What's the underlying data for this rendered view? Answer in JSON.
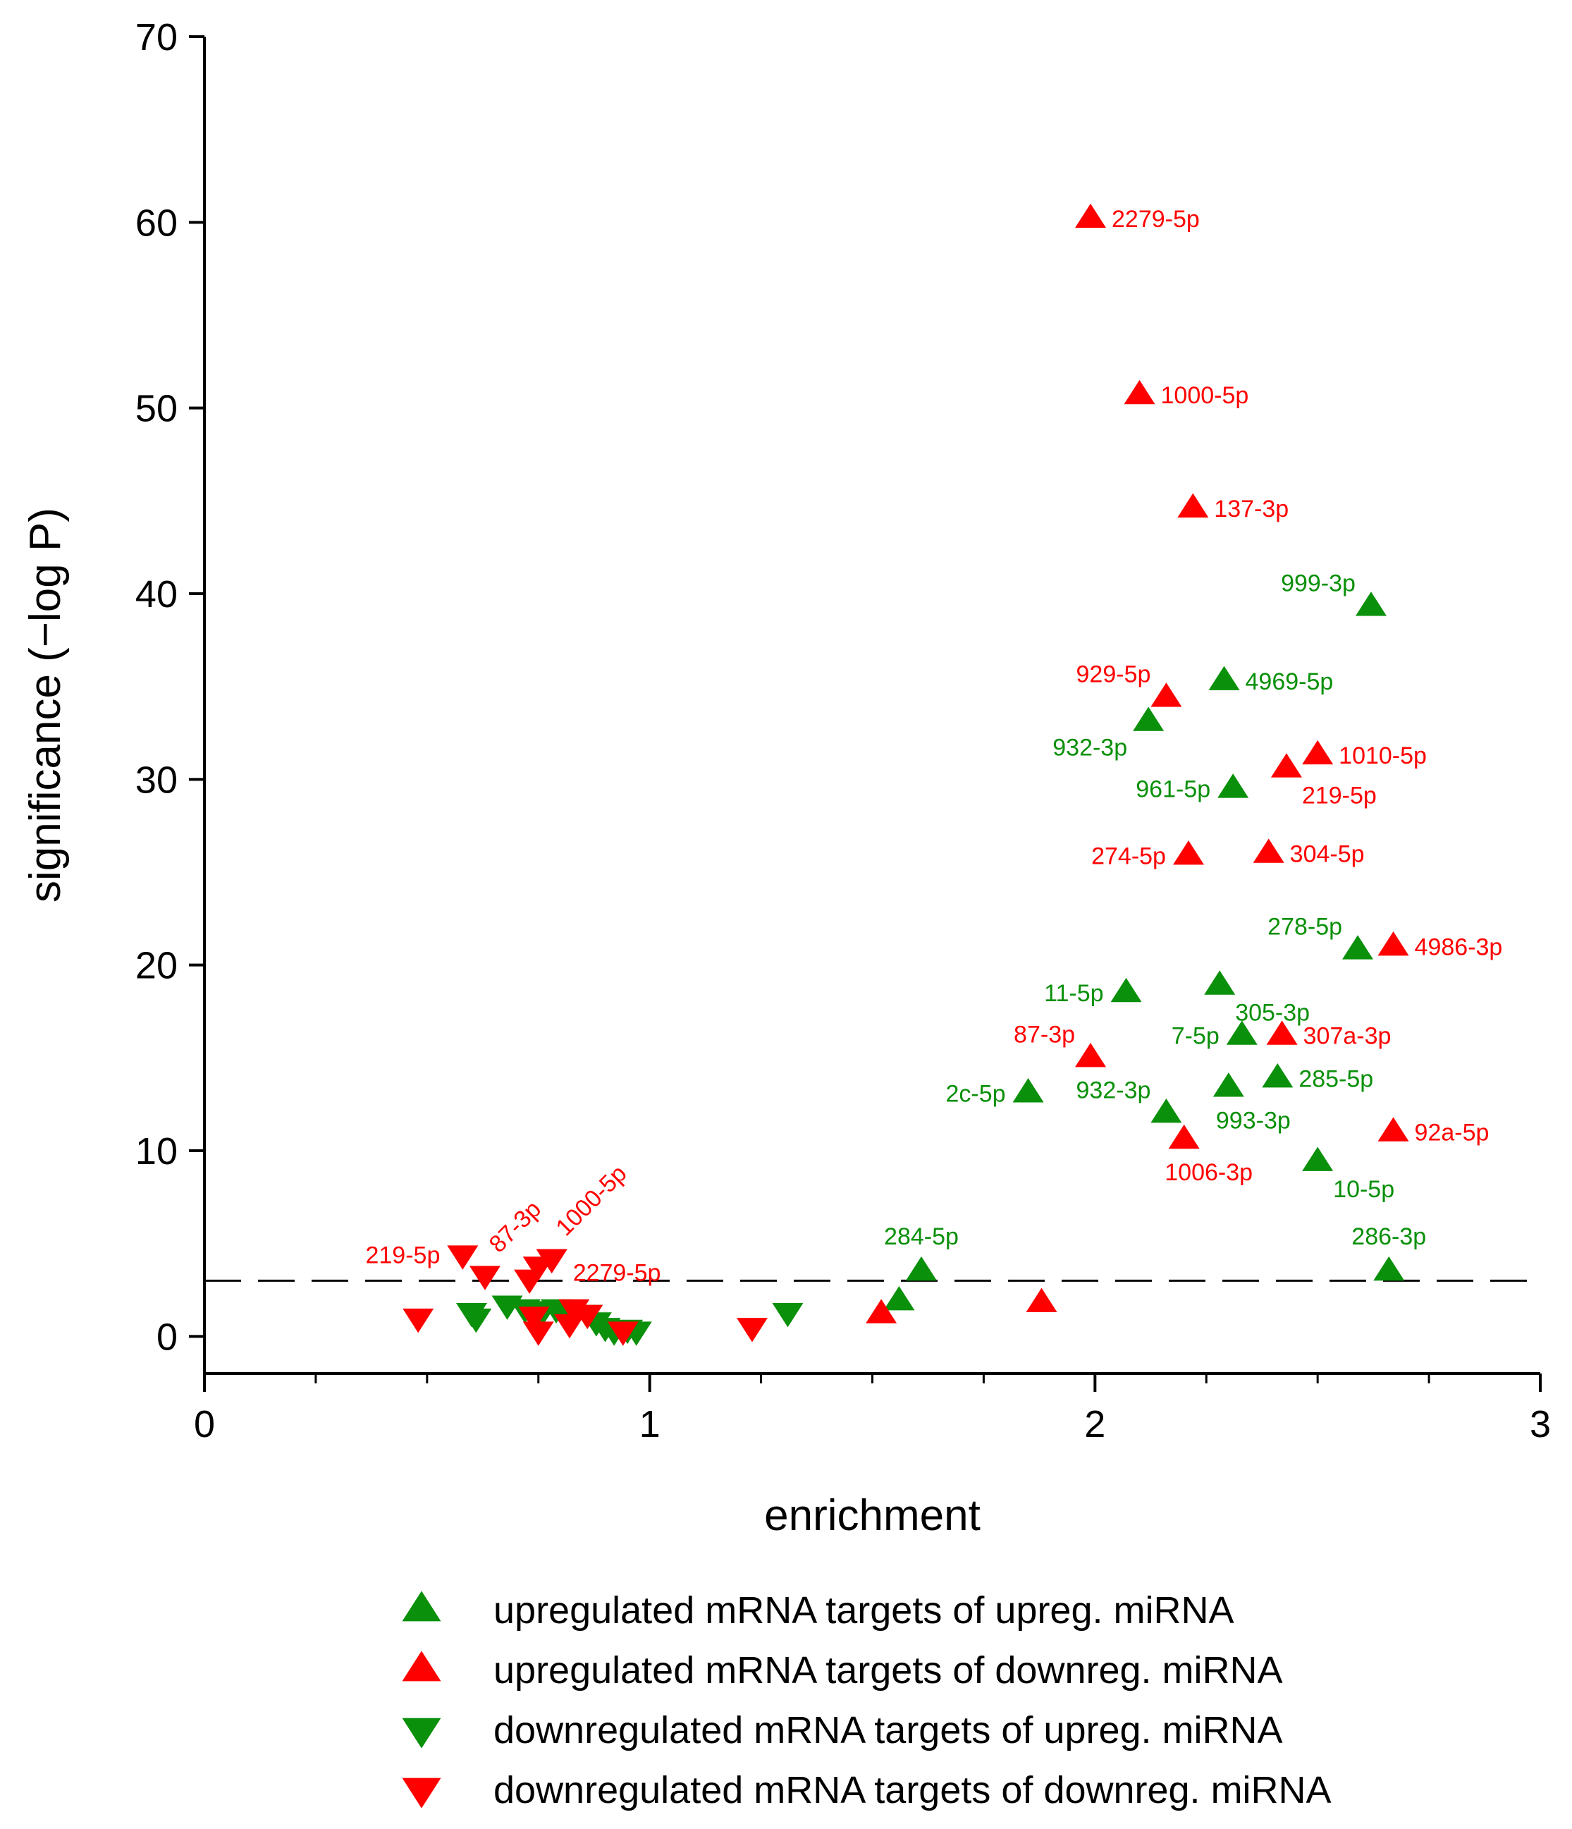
{
  "chart_data": {
    "type": "scatter",
    "title": "",
    "xlabel": "enrichment",
    "ylabel": "significance (−log P)",
    "xlim": [
      0,
      3
    ],
    "ylim": [
      -2,
      70
    ],
    "x_ticks": [
      0,
      1,
      2,
      3
    ],
    "x_tick_labels": [
      "0",
      "1",
      "2",
      "3"
    ],
    "x_minor_step": 0.25,
    "y_ticks": [
      0,
      10,
      20,
      30,
      40,
      50,
      60,
      70
    ],
    "y_tick_labels": [
      "0",
      "10",
      "20",
      "30",
      "40",
      "50",
      "60",
      "70"
    ],
    "threshold": 3,
    "threshold_style": "dashed",
    "grid": false,
    "legend_position": "bottom",
    "colors": {
      "green": "#0a900a",
      "red": "#ff0000",
      "axis": "#000000"
    },
    "series": [
      {
        "name": "upregulated mRNA targets of upreg. miRNA",
        "marker": "triangle-up",
        "color": "#0a900a",
        "points": [
          {
            "x": 2.62,
            "y": 39.3,
            "label": "999-3p",
            "lpos": "left-up"
          },
          {
            "x": 2.29,
            "y": 35.3,
            "label": "4969-5p",
            "lpos": "right"
          },
          {
            "x": 2.12,
            "y": 33.1,
            "label": "932-3p",
            "lpos": "left-down"
          },
          {
            "x": 2.31,
            "y": 29.5,
            "label": "961-5p",
            "lpos": "left"
          },
          {
            "x": 2.59,
            "y": 20.8,
            "label": "278-5p",
            "lpos": "left-up"
          },
          {
            "x": 2.07,
            "y": 18.5,
            "label": "11-5p",
            "lpos": "left"
          },
          {
            "x": 2.28,
            "y": 18.9,
            "label": "305-3p",
            "lpos": "right-down"
          },
          {
            "x": 2.33,
            "y": 16.2,
            "label": "7-5p",
            "lpos": "left"
          },
          {
            "x": 1.85,
            "y": 13.1,
            "label": "2c-5p",
            "lpos": "left"
          },
          {
            "x": 2.41,
            "y": 13.9,
            "label": "285-5p",
            "lpos": "right"
          },
          {
            "x": 2.16,
            "y": 12.0,
            "label": "932-3p",
            "lpos": "left-up"
          },
          {
            "x": 2.3,
            "y": 13.4,
            "label": "993-3p",
            "lpos": "below"
          },
          {
            "x": 2.5,
            "y": 9.4,
            "label": "10-5p",
            "lpos": "right-down"
          },
          {
            "x": 1.61,
            "y": 3.5,
            "label": "284-5p",
            "lpos": "above"
          },
          {
            "x": 2.66,
            "y": 3.5,
            "label": "286-3p",
            "lpos": "above"
          },
          {
            "x": 1.56,
            "y": 1.9,
            "label": "",
            "lpos": "none"
          }
        ]
      },
      {
        "name": "upregulated mRNA targets of downreg. miRNA",
        "marker": "triangle-up",
        "color": "#ff0000",
        "points": [
          {
            "x": 1.99,
            "y": 60.2,
            "label": "2279-5p",
            "lpos": "right"
          },
          {
            "x": 2.1,
            "y": 50.7,
            "label": "1000-5p",
            "lpos": "right"
          },
          {
            "x": 2.22,
            "y": 44.6,
            "label": "137-3p",
            "lpos": "right"
          },
          {
            "x": 2.16,
            "y": 34.4,
            "label": "929-5p",
            "lpos": "left-up"
          },
          {
            "x": 2.5,
            "y": 31.3,
            "label": "1010-5p",
            "lpos": "right"
          },
          {
            "x": 2.43,
            "y": 30.6,
            "label": "219-5p",
            "lpos": "right-down"
          },
          {
            "x": 2.21,
            "y": 25.9,
            "label": "274-5p",
            "lpos": "left"
          },
          {
            "x": 2.39,
            "y": 26.0,
            "label": "304-5p",
            "lpos": "right"
          },
          {
            "x": 2.67,
            "y": 21.0,
            "label": "4986-3p",
            "lpos": "right"
          },
          {
            "x": 1.99,
            "y": 15.0,
            "label": "87-3p",
            "lpos": "left-up"
          },
          {
            "x": 2.42,
            "y": 16.2,
            "label": "307a-3p",
            "lpos": "right"
          },
          {
            "x": 2.2,
            "y": 10.6,
            "label": "1006-3p",
            "lpos": "below"
          },
          {
            "x": 2.67,
            "y": 11.0,
            "label": "92a-5p",
            "lpos": "right"
          },
          {
            "x": 1.52,
            "y": 1.2,
            "label": "",
            "lpos": "none"
          },
          {
            "x": 1.88,
            "y": 1.8,
            "label": "",
            "lpos": "none"
          }
        ]
      },
      {
        "name": "downregulated mRNA targets of upreg. miRNA",
        "marker": "triangle-down",
        "color": "#0a900a",
        "points": [
          {
            "x": 0.6,
            "y": 1.3,
            "label": "",
            "lpos": "none"
          },
          {
            "x": 0.61,
            "y": 1.0,
            "label": "",
            "lpos": "none"
          },
          {
            "x": 0.68,
            "y": 1.7,
            "label": "",
            "lpos": "none"
          },
          {
            "x": 0.72,
            "y": 1.5,
            "label": "",
            "lpos": "none"
          },
          {
            "x": 0.74,
            "y": 1.1,
            "label": "",
            "lpos": "none"
          },
          {
            "x": 0.76,
            "y": 1.4,
            "label": "",
            "lpos": "none"
          },
          {
            "x": 0.79,
            "y": 1.5,
            "label": "",
            "lpos": "none"
          },
          {
            "x": 0.81,
            "y": 1.2,
            "label": "",
            "lpos": "none"
          },
          {
            "x": 0.86,
            "y": 1.2,
            "label": "",
            "lpos": "none"
          },
          {
            "x": 0.88,
            "y": 0.8,
            "label": "",
            "lpos": "none"
          },
          {
            "x": 0.9,
            "y": 0.5,
            "label": "",
            "lpos": "none"
          },
          {
            "x": 0.92,
            "y": 0.3,
            "label": "",
            "lpos": "none"
          },
          {
            "x": 0.95,
            "y": 0.4,
            "label": "",
            "lpos": "none"
          },
          {
            "x": 0.97,
            "y": 0.3,
            "label": "",
            "lpos": "none"
          },
          {
            "x": 1.31,
            "y": 1.3,
            "label": "",
            "lpos": "none"
          }
        ]
      },
      {
        "name": "downregulated mRNA targets of downreg. miRNA",
        "marker": "triangle-down",
        "color": "#ff0000",
        "points": [
          {
            "x": 0.58,
            "y": 4.4,
            "label": "219-5p",
            "lpos": "left"
          },
          {
            "x": 0.63,
            "y": 3.3,
            "label": "87-3p",
            "lpos": "rot"
          },
          {
            "x": 0.73,
            "y": 3.1,
            "label": "",
            "lpos": "none"
          },
          {
            "x": 0.75,
            "y": 3.8,
            "label": "",
            "lpos": "none"
          },
          {
            "x": 0.78,
            "y": 4.2,
            "label": "1000-5p",
            "lpos": "rot"
          },
          {
            "x": 0.78,
            "y": 4.2,
            "label": "2279-5p",
            "lpos": "right-low"
          },
          {
            "x": 0.48,
            "y": 1.0,
            "label": "",
            "lpos": "none"
          },
          {
            "x": 0.74,
            "y": 1.1,
            "label": "",
            "lpos": "none"
          },
          {
            "x": 0.75,
            "y": 0.3,
            "label": "",
            "lpos": "none"
          },
          {
            "x": 0.83,
            "y": 1.5,
            "label": "",
            "lpos": "none"
          },
          {
            "x": 0.82,
            "y": 0.7,
            "label": "",
            "lpos": "none"
          },
          {
            "x": 0.86,
            "y": 1.2,
            "label": "",
            "lpos": "none"
          },
          {
            "x": 0.94,
            "y": 0.3,
            "label": "",
            "lpos": "none"
          },
          {
            "x": 1.23,
            "y": 0.5,
            "label": "",
            "lpos": "none"
          }
        ]
      }
    ]
  }
}
